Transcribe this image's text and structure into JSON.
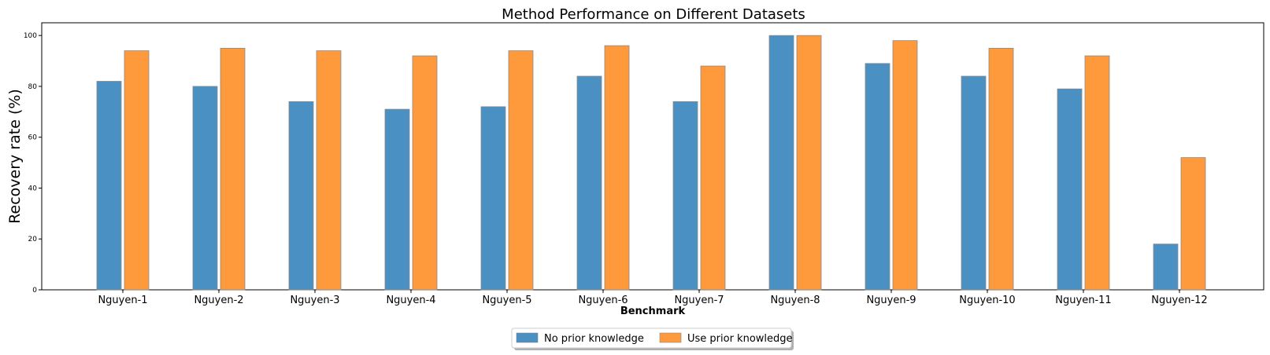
{
  "chart_data": {
    "type": "bar",
    "title": "Method Performance on Different Datasets",
    "xlabel": "Benchmark",
    "ylabel": "Recovery rate (%)",
    "ylim": [
      0,
      105
    ],
    "yticks": [
      0,
      20,
      40,
      60,
      80,
      100
    ],
    "categories": [
      "Nguyen-1",
      "Nguyen-2",
      "Nguyen-3",
      "Nguyen-4",
      "Nguyen-5",
      "Nguyen-6",
      "Nguyen-7",
      "Nguyen-8",
      "Nguyen-9",
      "Nguyen-10",
      "Nguyen-11",
      "Nguyen-12"
    ],
    "series": [
      {
        "name": "No prior knowledge",
        "color": "#4a90c2",
        "values": [
          82,
          80,
          74,
          71,
          72,
          84,
          74,
          100,
          89,
          84,
          79,
          18
        ]
      },
      {
        "name": "Use prior knowledge",
        "color": "#ff9a3c",
        "values": [
          94,
          95,
          94,
          92,
          94,
          96,
          88,
          100,
          98,
          95,
          92,
          52
        ]
      }
    ],
    "grid": false,
    "legend_position": "bottom-center"
  }
}
